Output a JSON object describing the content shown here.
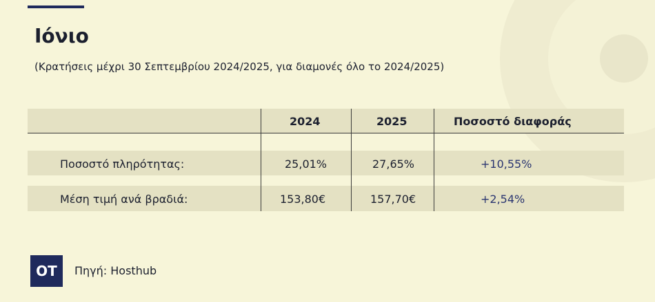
{
  "header": {
    "title": "Ιόνιο",
    "subtitle": "(Κρατήσεις μέχρι 30 Σεπτεμβρίου 2024/2025, για διαμονές όλο το 2024/2025)"
  },
  "table": {
    "columns": [
      "2024",
      "2025",
      "Ποσοστό διαφοράς"
    ],
    "rows": [
      [
        "Ποσοστό πληρότητας:",
        "25,01%",
        "27,65%",
        "+10,55%"
      ],
      [
        "Μέση τιμή ανά βραδιά:",
        "153,80€",
        "157,70€",
        "+2,54%"
      ]
    ]
  },
  "footer": {
    "logo": "OT",
    "source": "Πηγή: Hosthub"
  }
}
